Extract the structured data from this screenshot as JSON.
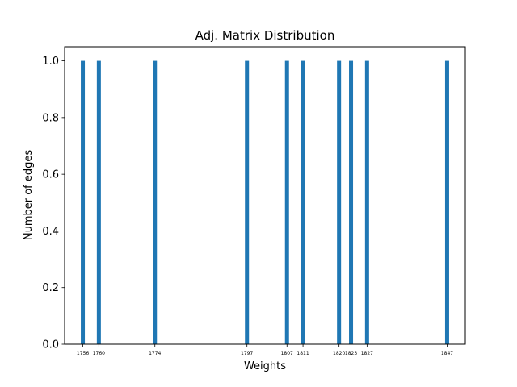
{
  "chart_data": {
    "type": "bar",
    "title": "Adj. Matrix Distribution",
    "xlabel": "Weights",
    "ylabel": "Number of edges",
    "categories": [
      "1756",
      "1760",
      "1774",
      "1797",
      "1807",
      "1811",
      "1820",
      "1823",
      "1827",
      "1847"
    ],
    "x": [
      1756,
      1760,
      1774,
      1797,
      1807,
      1811,
      1820,
      1823,
      1827,
      1847
    ],
    "values": [
      1,
      1,
      1,
      1,
      1,
      1,
      1,
      1,
      1,
      1
    ],
    "ylim": [
      0,
      1.05
    ],
    "yticks": [
      "0.0",
      "0.2",
      "0.4",
      "0.6",
      "0.8",
      "1.0"
    ],
    "grid": false,
    "color": "#1f77b4"
  }
}
